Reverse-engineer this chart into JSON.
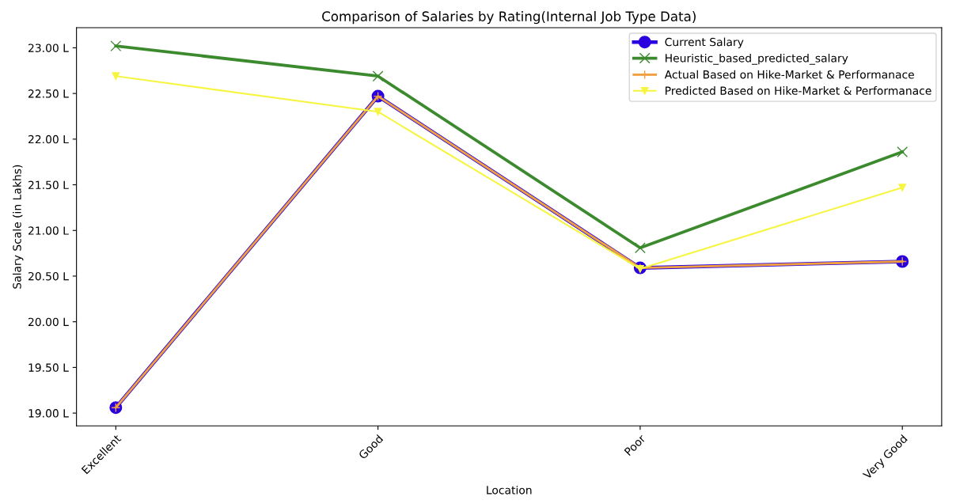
{
  "chart_data": {
    "type": "line",
    "title": "Comparison of Salaries by Rating(Internal Job Type Data)",
    "xlabel": "Location",
    "ylabel": "Salary Scale (in Lakhs)",
    "categories": [
      "Excellent",
      "Good",
      "Poor",
      "Very Good"
    ],
    "series": [
      {
        "name": "Current Salary",
        "color": "#2a00e0",
        "marker": "circle",
        "values": [
          19.06,
          22.47,
          20.59,
          20.66
        ]
      },
      {
        "name": "Heuristic_based_predicted_salary",
        "color": "#3c8a2e",
        "marker": "cross",
        "values": [
          23.02,
          22.69,
          20.81,
          21.86
        ]
      },
      {
        "name": "Actual Based on Hike-Market & Performanace",
        "color": "#f0a040",
        "marker": "plus",
        "values": [
          19.06,
          22.47,
          20.59,
          20.66
        ]
      },
      {
        "name": "Predicted Based on Hike-Market & Performanace",
        "color": "#f5f542",
        "marker": "triangle",
        "values": [
          22.69,
          22.3,
          20.58,
          21.47
        ]
      }
    ],
    "ylim": [
      18.86,
      23.22
    ],
    "yticks": [
      {
        "value": 19.0,
        "label": "19.00 L"
      },
      {
        "value": 19.5,
        "label": "19.50 L"
      },
      {
        "value": 20.0,
        "label": "20.00 L"
      },
      {
        "value": 20.5,
        "label": "20.50 L"
      },
      {
        "value": 21.0,
        "label": "21.00 L"
      },
      {
        "value": 21.5,
        "label": "21.50 L"
      },
      {
        "value": 22.0,
        "label": "22.00 L"
      },
      {
        "value": 22.5,
        "label": "22.50 L"
      },
      {
        "value": 23.0,
        "label": "23.00 L"
      }
    ],
    "legend": "top right",
    "grid": false,
    "line_style": "solid"
  }
}
